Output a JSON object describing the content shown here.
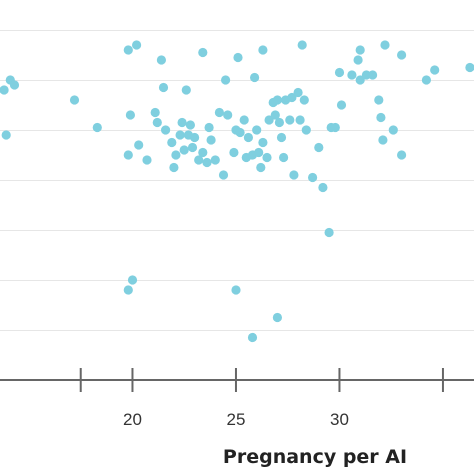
{
  "chart_data": {
    "type": "scatter",
    "title": "",
    "xlabel": "Pregnancy per AI",
    "ylabel": "",
    "xlim": [
      13.6,
      36.5
    ],
    "ylim": [
      0,
      7.6
    ],
    "grid": "horizontal",
    "x_ticks": [
      20,
      25,
      30
    ],
    "x_tick_labels": [
      "20",
      "25",
      "30"
    ],
    "point_color": "#7fcfdf",
    "axis_color": "#666666",
    "grid_color": "#e6e6e6",
    "points": [
      {
        "x": 19.8,
        "y": 6.6
      },
      {
        "x": 20.2,
        "y": 6.7
      },
      {
        "x": 19.9,
        "y": 5.3
      },
      {
        "x": 21.4,
        "y": 6.4
      },
      {
        "x": 23.4,
        "y": 6.55
      },
      {
        "x": 25.1,
        "y": 6.45
      },
      {
        "x": 26.3,
        "y": 6.6
      },
      {
        "x": 28.2,
        "y": 6.7
      },
      {
        "x": 31.0,
        "y": 6.6
      },
      {
        "x": 32.2,
        "y": 6.7
      },
      {
        "x": 33.0,
        "y": 6.5
      },
      {
        "x": 36.3,
        "y": 6.25
      },
      {
        "x": 14.1,
        "y": 6.0
      },
      {
        "x": 14.3,
        "y": 5.9
      },
      {
        "x": 17.2,
        "y": 5.6
      },
      {
        "x": 18.3,
        "y": 5.05
      },
      {
        "x": 19.8,
        "y": 4.5
      },
      {
        "x": 20.3,
        "y": 4.7
      },
      {
        "x": 20.7,
        "y": 4.4
      },
      {
        "x": 21.1,
        "y": 5.35
      },
      {
        "x": 21.2,
        "y": 5.15
      },
      {
        "x": 21.5,
        "y": 5.85
      },
      {
        "x": 21.6,
        "y": 5.0
      },
      {
        "x": 21.9,
        "y": 4.75
      },
      {
        "x": 22.0,
        "y": 4.25
      },
      {
        "x": 22.1,
        "y": 4.5
      },
      {
        "x": 22.3,
        "y": 4.9
      },
      {
        "x": 22.4,
        "y": 5.15
      },
      {
        "x": 22.5,
        "y": 4.6
      },
      {
        "x": 22.6,
        "y": 5.8
      },
      {
        "x": 22.7,
        "y": 4.9
      },
      {
        "x": 22.8,
        "y": 5.1
      },
      {
        "x": 22.9,
        "y": 4.65
      },
      {
        "x": 23.0,
        "y": 4.85
      },
      {
        "x": 23.2,
        "y": 4.4
      },
      {
        "x": 23.4,
        "y": 4.55
      },
      {
        "x": 23.6,
        "y": 4.35
      },
      {
        "x": 23.7,
        "y": 5.05
      },
      {
        "x": 23.8,
        "y": 4.8
      },
      {
        "x": 24.0,
        "y": 4.4
      },
      {
        "x": 24.2,
        "y": 5.35
      },
      {
        "x": 24.4,
        "y": 4.1
      },
      {
        "x": 24.6,
        "y": 5.3
      },
      {
        "x": 24.9,
        "y": 4.55
      },
      {
        "x": 25.0,
        "y": 5.0
      },
      {
        "x": 24.5,
        "y": 6.0
      },
      {
        "x": 25.2,
        "y": 4.95
      },
      {
        "x": 25.4,
        "y": 5.2
      },
      {
        "x": 25.5,
        "y": 4.45
      },
      {
        "x": 25.6,
        "y": 4.85
      },
      {
        "x": 25.8,
        "y": 4.5
      },
      {
        "x": 25.9,
        "y": 6.05
      },
      {
        "x": 26.0,
        "y": 5.0
      },
      {
        "x": 26.1,
        "y": 4.55
      },
      {
        "x": 26.2,
        "y": 4.25
      },
      {
        "x": 26.3,
        "y": 4.75
      },
      {
        "x": 26.5,
        "y": 4.45
      },
      {
        "x": 26.6,
        "y": 5.2
      },
      {
        "x": 26.8,
        "y": 5.55
      },
      {
        "x": 26.9,
        "y": 5.3
      },
      {
        "x": 27.0,
        "y": 5.6
      },
      {
        "x": 27.1,
        "y": 5.15
      },
      {
        "x": 27.2,
        "y": 4.85
      },
      {
        "x": 27.3,
        "y": 4.45
      },
      {
        "x": 27.4,
        "y": 5.6
      },
      {
        "x": 27.6,
        "y": 5.2
      },
      {
        "x": 27.7,
        "y": 5.65
      },
      {
        "x": 27.8,
        "y": 4.1
      },
      {
        "x": 28.0,
        "y": 5.75
      },
      {
        "x": 28.1,
        "y": 5.2
      },
      {
        "x": 28.3,
        "y": 5.6
      },
      {
        "x": 28.4,
        "y": 5.0
      },
      {
        "x": 28.7,
        "y": 4.05
      },
      {
        "x": 29.0,
        "y": 4.65
      },
      {
        "x": 29.2,
        "y": 3.85
      },
      {
        "x": 29.6,
        "y": 5.05
      },
      {
        "x": 29.8,
        "y": 5.05
      },
      {
        "x": 30.0,
        "y": 6.15
      },
      {
        "x": 30.1,
        "y": 5.5
      },
      {
        "x": 30.6,
        "y": 6.1
      },
      {
        "x": 30.9,
        "y": 6.4
      },
      {
        "x": 31.0,
        "y": 6.0
      },
      {
        "x": 31.3,
        "y": 6.1
      },
      {
        "x": 31.6,
        "y": 6.1
      },
      {
        "x": 31.9,
        "y": 5.6
      },
      {
        "x": 32.0,
        "y": 5.25
      },
      {
        "x": 32.1,
        "y": 4.8
      },
      {
        "x": 32.6,
        "y": 5.0
      },
      {
        "x": 33.0,
        "y": 4.5
      },
      {
        "x": 34.2,
        "y": 6.0
      },
      {
        "x": 34.6,
        "y": 6.2
      },
      {
        "x": 13.8,
        "y": 5.8
      },
      {
        "x": 13.9,
        "y": 4.9
      },
      {
        "x": 20.0,
        "y": 2.0
      },
      {
        "x": 19.8,
        "y": 1.8
      },
      {
        "x": 25.0,
        "y": 1.8
      },
      {
        "x": 25.8,
        "y": 0.85
      },
      {
        "x": 27.0,
        "y": 1.25
      },
      {
        "x": 29.5,
        "y": 2.95
      }
    ]
  }
}
